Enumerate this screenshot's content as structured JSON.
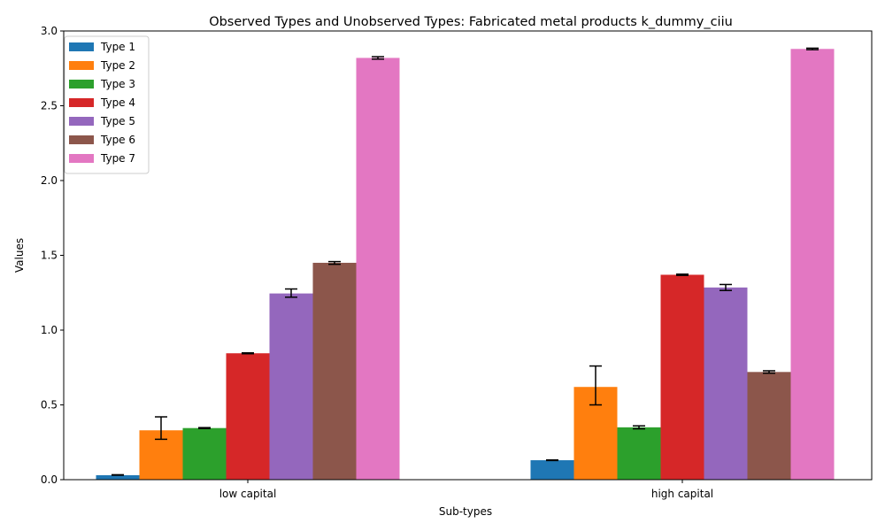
{
  "chart_data": {
    "type": "bar",
    "title": "Observed Types and Unobserved Types: Fabricated metal products k_dummy_ciiu",
    "xlabel": "Sub-types",
    "ylabel": "Values",
    "categories": [
      "low capital",
      "high capital"
    ],
    "ylim": [
      0,
      3.0
    ],
    "yticks": [
      "0.0",
      "0.5",
      "1.0",
      "1.5",
      "2.0",
      "2.5",
      "3.0"
    ],
    "ytick_values": [
      0,
      0.5,
      1.0,
      1.5,
      2.0,
      2.5,
      3.0
    ],
    "grid": false,
    "legend_position": "top-left",
    "series": [
      {
        "name": "Type 1",
        "color": "#1f77b4",
        "values": [
          0.03,
          0.13
        ],
        "err_low": [
          0.03,
          0.128
        ],
        "err_high": [
          0.033,
          0.132
        ]
      },
      {
        "name": "Type 2",
        "color": "#ff7f0e",
        "values": [
          0.33,
          0.62
        ],
        "err_low": [
          0.27,
          0.5
        ],
        "err_high": [
          0.42,
          0.76
        ]
      },
      {
        "name": "Type 3",
        "color": "#2ca02c",
        "values": [
          0.345,
          0.35
        ],
        "err_low": [
          0.342,
          0.34
        ],
        "err_high": [
          0.348,
          0.36
        ]
      },
      {
        "name": "Type 4",
        "color": "#d62728",
        "values": [
          0.845,
          1.37
        ],
        "err_low": [
          0.842,
          1.366
        ],
        "err_high": [
          0.848,
          1.374
        ]
      },
      {
        "name": "Type 5",
        "color": "#9467bd",
        "values": [
          1.245,
          1.285
        ],
        "err_low": [
          1.22,
          1.265
        ],
        "err_high": [
          1.275,
          1.305
        ]
      },
      {
        "name": "Type 6",
        "color": "#8c564b",
        "values": [
          1.45,
          0.72
        ],
        "err_low": [
          1.44,
          0.712
        ],
        "err_high": [
          1.458,
          0.728
        ]
      },
      {
        "name": "Type 7",
        "color": "#e377c2",
        "values": [
          2.82,
          2.88
        ],
        "err_low": [
          2.812,
          2.875
        ],
        "err_high": [
          2.828,
          2.885
        ]
      }
    ]
  }
}
